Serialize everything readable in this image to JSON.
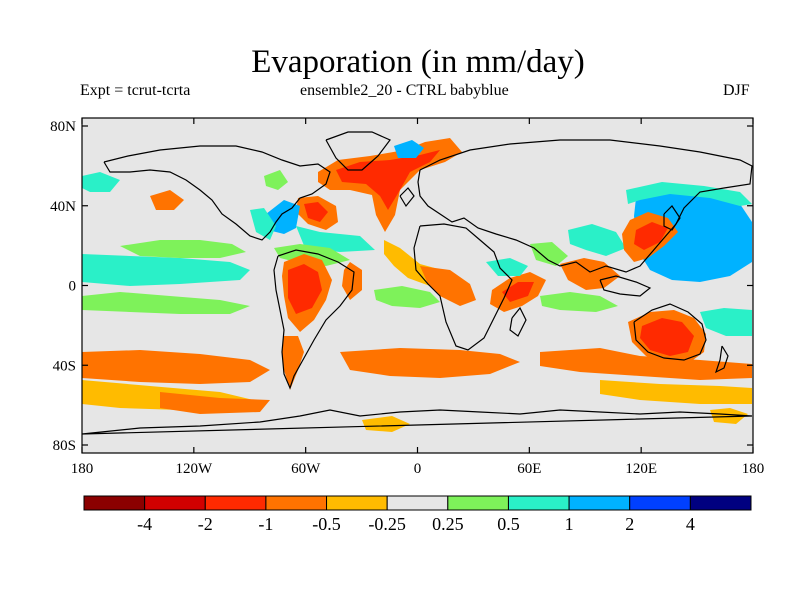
{
  "title": "Evaporation (in mm/day)",
  "subtitle_left": "Expt = tcrut-tcrta",
  "subtitle_center": "ensemble2_20 - CTRL babyblue",
  "subtitle_right": "DJF",
  "lat_labels": [
    "80N",
    "40N",
    "0",
    "40S",
    "80S"
  ],
  "lon_labels": [
    "180",
    "120W",
    "60W",
    "0",
    "60E",
    "120E",
    "180"
  ],
  "colorbar": {
    "colors": [
      "#8b0000",
      "#d10000",
      "#ff2a00",
      "#ff7300",
      "#ffbb00",
      "#e6e6e6",
      "#7ef25a",
      "#2af0c8",
      "#00b2ff",
      "#0040ff",
      "#000080"
    ],
    "labels": [
      "-4",
      "-2",
      "-1",
      "-0.5",
      "-0.25",
      "0.25",
      "0.5",
      "1",
      "2",
      "4"
    ]
  },
  "map_colors": {
    "background": "#e6e6e6",
    "red": "#ff2a00",
    "orange": "#ff7300",
    "yellow": "#ffbb00",
    "green": "#7ef25a",
    "cyan": "#2af0c8",
    "blue": "#00b2ff",
    "coast": "#000000"
  }
}
